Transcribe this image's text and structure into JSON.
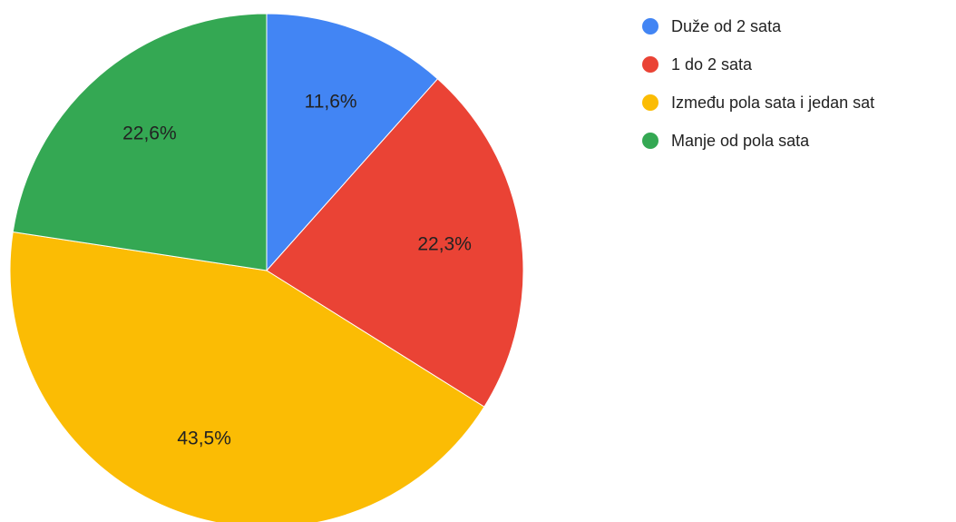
{
  "chart_data": {
    "type": "pie",
    "categories": [
      "Duže od 2 sata",
      "1 do 2 sata",
      "Između pola sata i jedan sat",
      "Manje od pola sata"
    ],
    "values": [
      11.6,
      22.3,
      43.5,
      22.6
    ],
    "value_labels": [
      "11,6%",
      "22,3%",
      "43,5%",
      "22,6%"
    ],
    "colors": [
      "#4285f4",
      "#ea4335",
      "#fbbc04",
      "#34a853"
    ],
    "legend": "top-right"
  }
}
